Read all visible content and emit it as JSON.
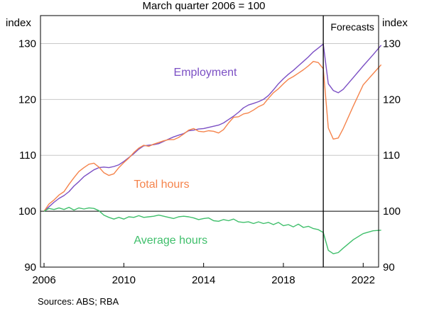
{
  "chart_data": {
    "type": "line",
    "title": "March quarter 2006 = 100",
    "ylabel_left": "index",
    "ylabel_right": "index",
    "ylim": [
      90,
      135
    ],
    "yticks": [
      90,
      100,
      110,
      120,
      130
    ],
    "xlim": [
      2006,
      2023.2
    ],
    "xticks": [
      2006,
      2010,
      2014,
      2018,
      2022
    ],
    "xtick_labels": [
      "2006",
      "2010",
      "2014",
      "2018",
      "2022"
    ],
    "forecast_start": 2020.0,
    "forecast_label": "Forecasts",
    "grid": true,
    "source": "Sources:   ABS; RBA",
    "series": [
      {
        "name": "Employment",
        "color": "#7B4FC4",
        "label_pos": [
          2012.5,
          124.2
        ],
        "points": [
          [
            2006.0,
            100.0
          ],
          [
            2006.25,
            100.8
          ],
          [
            2006.5,
            101.6
          ],
          [
            2006.75,
            102.3
          ],
          [
            2007.0,
            102.8
          ],
          [
            2007.25,
            103.5
          ],
          [
            2007.5,
            104.5
          ],
          [
            2007.75,
            105.3
          ],
          [
            2008.0,
            106.2
          ],
          [
            2008.25,
            106.8
          ],
          [
            2008.5,
            107.4
          ],
          [
            2008.75,
            107.8
          ],
          [
            2009.0,
            107.9
          ],
          [
            2009.25,
            107.8
          ],
          [
            2009.5,
            108.0
          ],
          [
            2009.75,
            108.3
          ],
          [
            2010.0,
            108.9
          ],
          [
            2010.25,
            109.6
          ],
          [
            2010.5,
            110.3
          ],
          [
            2010.75,
            111.1
          ],
          [
            2011.0,
            111.7
          ],
          [
            2011.25,
            111.8
          ],
          [
            2011.5,
            111.9
          ],
          [
            2011.75,
            112.1
          ],
          [
            2012.0,
            112.5
          ],
          [
            2012.25,
            112.9
          ],
          [
            2012.5,
            113.3
          ],
          [
            2012.75,
            113.6
          ],
          [
            2013.0,
            113.9
          ],
          [
            2013.25,
            114.4
          ],
          [
            2013.5,
            114.5
          ],
          [
            2013.75,
            114.7
          ],
          [
            2014.0,
            114.8
          ],
          [
            2014.25,
            115.0
          ],
          [
            2014.5,
            115.2
          ],
          [
            2014.75,
            115.4
          ],
          [
            2015.0,
            115.8
          ],
          [
            2015.25,
            116.4
          ],
          [
            2015.5,
            117.0
          ],
          [
            2015.75,
            117.7
          ],
          [
            2016.0,
            118.5
          ],
          [
            2016.25,
            119.0
          ],
          [
            2016.5,
            119.3
          ],
          [
            2016.75,
            119.6
          ],
          [
            2017.0,
            120.0
          ],
          [
            2017.25,
            120.7
          ],
          [
            2017.5,
            121.7
          ],
          [
            2017.75,
            122.8
          ],
          [
            2018.0,
            123.7
          ],
          [
            2018.25,
            124.5
          ],
          [
            2018.5,
            125.2
          ],
          [
            2018.75,
            126.0
          ],
          [
            2019.0,
            126.8
          ],
          [
            2019.25,
            127.6
          ],
          [
            2019.5,
            128.5
          ],
          [
            2019.75,
            129.2
          ],
          [
            2020.0,
            129.9
          ],
          [
            2020.25,
            122.8
          ],
          [
            2020.5,
            121.6
          ],
          [
            2020.75,
            121.2
          ],
          [
            2021.0,
            121.8
          ],
          [
            2021.5,
            123.9
          ],
          [
            2022.0,
            126.0
          ],
          [
            2022.5,
            128.0
          ],
          [
            2022.9,
            129.7
          ]
        ]
      },
      {
        "name": "Total hours",
        "color": "#F5844C",
        "label_pos": [
          2010.5,
          104.2
        ],
        "points": [
          [
            2006.0,
            100.0
          ],
          [
            2006.25,
            101.3
          ],
          [
            2006.5,
            102.0
          ],
          [
            2006.75,
            102.9
          ],
          [
            2007.0,
            103.5
          ],
          [
            2007.25,
            104.8
          ],
          [
            2007.5,
            106.0
          ],
          [
            2007.75,
            107.1
          ],
          [
            2008.0,
            107.8
          ],
          [
            2008.25,
            108.4
          ],
          [
            2008.5,
            108.6
          ],
          [
            2008.75,
            107.9
          ],
          [
            2009.0,
            106.9
          ],
          [
            2009.25,
            106.4
          ],
          [
            2009.5,
            106.7
          ],
          [
            2009.75,
            107.8
          ],
          [
            2010.0,
            108.7
          ],
          [
            2010.25,
            109.5
          ],
          [
            2010.5,
            110.5
          ],
          [
            2010.75,
            111.3
          ],
          [
            2011.0,
            111.8
          ],
          [
            2011.25,
            111.6
          ],
          [
            2011.5,
            112.0
          ],
          [
            2011.75,
            112.3
          ],
          [
            2012.0,
            112.6
          ],
          [
            2012.25,
            112.8
          ],
          [
            2012.5,
            112.8
          ],
          [
            2012.75,
            113.2
          ],
          [
            2013.0,
            113.8
          ],
          [
            2013.25,
            114.5
          ],
          [
            2013.5,
            114.8
          ],
          [
            2013.75,
            114.3
          ],
          [
            2014.0,
            114.2
          ],
          [
            2014.25,
            114.4
          ],
          [
            2014.5,
            114.3
          ],
          [
            2014.75,
            114.0
          ],
          [
            2015.0,
            114.6
          ],
          [
            2015.25,
            115.8
          ],
          [
            2015.5,
            116.8
          ],
          [
            2015.75,
            116.9
          ],
          [
            2016.0,
            117.4
          ],
          [
            2016.25,
            117.6
          ],
          [
            2016.5,
            118.1
          ],
          [
            2016.75,
            118.7
          ],
          [
            2017.0,
            119.1
          ],
          [
            2017.25,
            120.2
          ],
          [
            2017.5,
            121.2
          ],
          [
            2017.75,
            121.9
          ],
          [
            2018.0,
            122.8
          ],
          [
            2018.25,
            123.6
          ],
          [
            2018.5,
            124.1
          ],
          [
            2018.75,
            124.7
          ],
          [
            2019.0,
            125.3
          ],
          [
            2019.25,
            126.0
          ],
          [
            2019.5,
            126.8
          ],
          [
            2019.75,
            126.6
          ],
          [
            2020.0,
            125.5
          ],
          [
            2020.25,
            114.9
          ],
          [
            2020.5,
            112.9
          ],
          [
            2020.75,
            113.1
          ],
          [
            2021.0,
            114.8
          ],
          [
            2021.5,
            118.8
          ],
          [
            2022.0,
            122.6
          ],
          [
            2022.5,
            124.6
          ],
          [
            2022.9,
            126.2
          ]
        ]
      },
      {
        "name": "Average hours",
        "color": "#3FBF6B",
        "label_pos": [
          2010.5,
          94.2
        ],
        "points": [
          [
            2006.0,
            100.0
          ],
          [
            2006.25,
            100.5
          ],
          [
            2006.5,
            100.3
          ],
          [
            2006.75,
            100.6
          ],
          [
            2007.0,
            100.3
          ],
          [
            2007.25,
            100.7
          ],
          [
            2007.5,
            100.2
          ],
          [
            2007.75,
            100.6
          ],
          [
            2008.0,
            100.4
          ],
          [
            2008.25,
            100.6
          ],
          [
            2008.5,
            100.5
          ],
          [
            2008.75,
            100.1
          ],
          [
            2009.0,
            99.3
          ],
          [
            2009.25,
            98.9
          ],
          [
            2009.5,
            98.6
          ],
          [
            2009.75,
            98.9
          ],
          [
            2010.0,
            98.6
          ],
          [
            2010.25,
            99.0
          ],
          [
            2010.5,
            98.9
          ],
          [
            2010.75,
            99.2
          ],
          [
            2011.0,
            98.9
          ],
          [
            2011.25,
            99.0
          ],
          [
            2011.5,
            99.1
          ],
          [
            2011.75,
            99.3
          ],
          [
            2012.0,
            99.1
          ],
          [
            2012.25,
            98.9
          ],
          [
            2012.5,
            98.7
          ],
          [
            2012.75,
            99.0
          ],
          [
            2013.0,
            99.1
          ],
          [
            2013.25,
            99.0
          ],
          [
            2013.5,
            98.8
          ],
          [
            2013.75,
            98.5
          ],
          [
            2014.0,
            98.7
          ],
          [
            2014.25,
            98.8
          ],
          [
            2014.5,
            98.3
          ],
          [
            2014.75,
            98.2
          ],
          [
            2015.0,
            98.5
          ],
          [
            2015.25,
            98.3
          ],
          [
            2015.5,
            98.6
          ],
          [
            2015.75,
            98.1
          ],
          [
            2016.0,
            98.0
          ],
          [
            2016.25,
            98.1
          ],
          [
            2016.5,
            97.8
          ],
          [
            2016.75,
            98.1
          ],
          [
            2017.0,
            97.8
          ],
          [
            2017.25,
            98.0
          ],
          [
            2017.5,
            97.6
          ],
          [
            2017.75,
            98.0
          ],
          [
            2018.0,
            97.4
          ],
          [
            2018.25,
            97.6
          ],
          [
            2018.5,
            97.2
          ],
          [
            2018.75,
            97.7
          ],
          [
            2019.0,
            97.1
          ],
          [
            2019.25,
            97.3
          ],
          [
            2019.5,
            96.9
          ],
          [
            2019.75,
            96.7
          ],
          [
            2020.0,
            96.2
          ],
          [
            2020.25,
            93.0
          ],
          [
            2020.5,
            92.4
          ],
          [
            2020.75,
            92.6
          ],
          [
            2021.0,
            93.4
          ],
          [
            2021.5,
            94.9
          ],
          [
            2022.0,
            96.0
          ],
          [
            2022.5,
            96.5
          ],
          [
            2022.9,
            96.6
          ]
        ]
      }
    ]
  }
}
